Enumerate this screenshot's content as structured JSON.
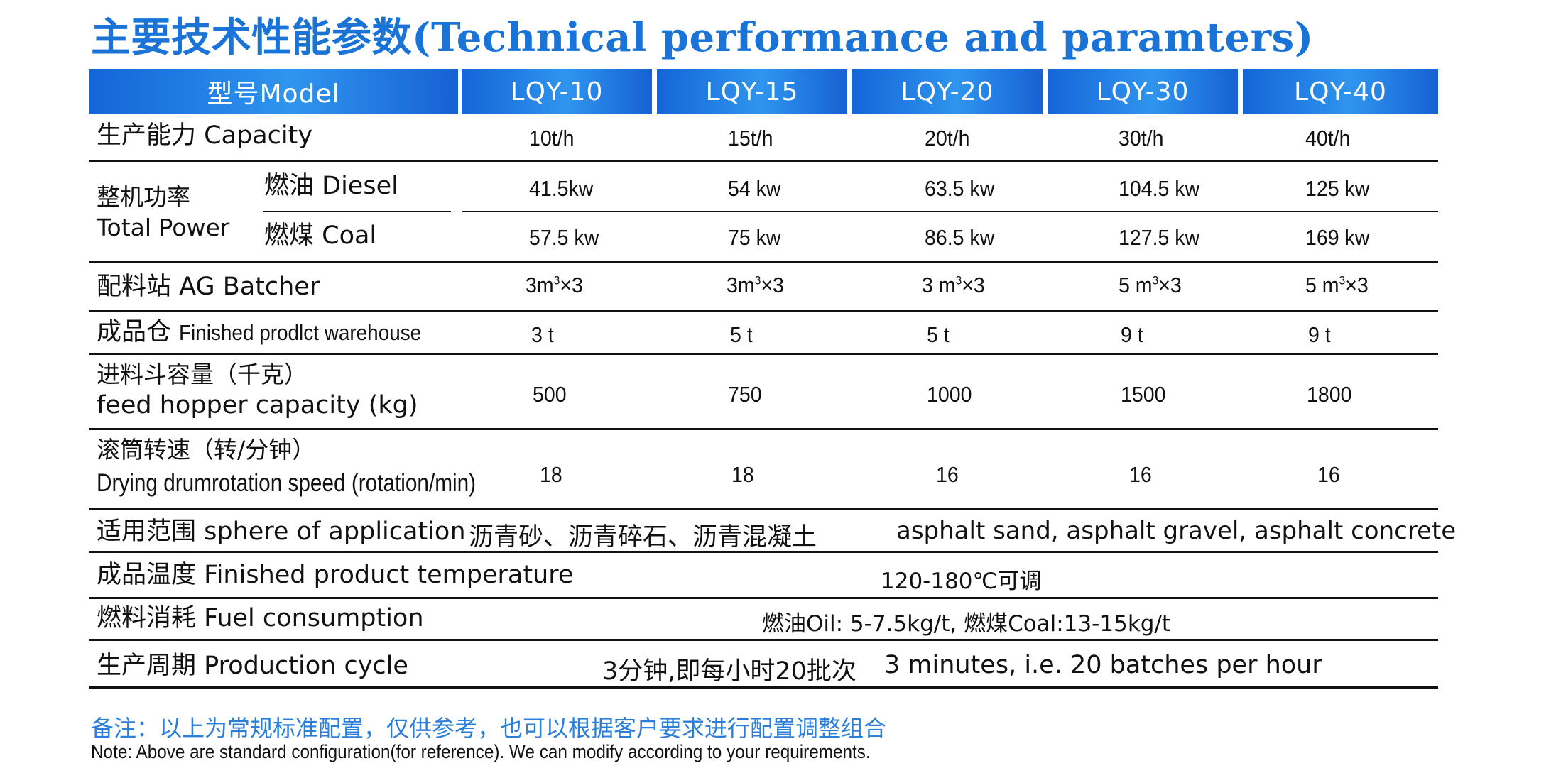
{
  "title": "主要技术性能参数(Technical performance and paramters)",
  "header": {
    "model_label": "型号Model",
    "models": [
      "LQY-10",
      "LQY-15",
      "LQY-20",
      "LQY-30",
      "LQY-40"
    ]
  },
  "rows": {
    "capacity": {
      "label": "生产能力 Capacity",
      "values": [
        "10t/h",
        "15t/h",
        "20t/h",
        "30t/h",
        "40t/h"
      ]
    },
    "total_power": {
      "label_cn": "整机功率",
      "label_en": "Total Power",
      "diesel": {
        "label": "燃油 Diesel",
        "values": [
          "41.5kw",
          "54 kw",
          "63.5 kw",
          "104.5 kw",
          "125 kw"
        ]
      },
      "coal": {
        "label": "燃煤 Coal",
        "values": [
          "57.5 kw",
          "75 kw",
          "86.5 kw",
          "127.5 kw",
          "169 kw"
        ]
      }
    },
    "ag_batcher": {
      "label": "配料站 AG Batcher",
      "values": [
        {
          "base": "3m",
          "sup": "3",
          "suffix": "×3"
        },
        {
          "base": "3m",
          "sup": "3",
          "suffix": "×3"
        },
        {
          "base": "3 m",
          "sup": "3",
          "suffix": "×3"
        },
        {
          "base": "5 m",
          "sup": "3",
          "suffix": "×3"
        },
        {
          "base": "5 m",
          "sup": "3",
          "suffix": "×3"
        }
      ]
    },
    "warehouse": {
      "label_cn": "成品仓",
      "label_en": "Finished prodlct warehouse",
      "values": [
        "3 t",
        "5 t",
        "5 t",
        "9 t",
        "9 t"
      ]
    },
    "feed_hopper": {
      "label_cn": "进料斗容量（千克）",
      "label_en": "feed hopper capacity (kg)",
      "values": [
        "500",
        "750",
        "1000",
        "1500",
        "1800"
      ]
    },
    "drum_speed": {
      "label_cn": "滚筒转速（转/分钟）",
      "label_en": "Drying drumrotation speed (rotation/min)",
      "values": [
        "18",
        "18",
        "16",
        "16",
        "16"
      ]
    },
    "application": {
      "label": "适用范围 sphere of application",
      "value_cn": "沥青砂、沥青碎石、沥青混凝土",
      "value_en": "asphalt sand, asphalt gravel, asphalt concrete"
    },
    "temperature": {
      "label": "成品温度 Finished product temperature",
      "value": "120-180℃可调"
    },
    "fuel": {
      "label": "燃料消耗 Fuel consumption",
      "value": "燃油Oil: 5-7.5kg/t,   燃煤Coal:13-15kg/t"
    },
    "cycle": {
      "label": "生产周期 Production cycle",
      "value_cn": "3分钟,即每小时20批次",
      "value_en": "3 minutes, i.e. 20 batches per hour"
    }
  },
  "note": {
    "cn": "备注：以上为常规标准配置，仅供参考，也可以根据客户要求进行配置调整组合",
    "en": "Note: Above are standard configuration(for reference). We can modify according to your requirements."
  },
  "colors": {
    "accent": "#1a73d6",
    "header_gradient_start": "#1565d8",
    "header_gradient_mid": "#2f95ee",
    "note_blue": "#2b7fd9"
  }
}
